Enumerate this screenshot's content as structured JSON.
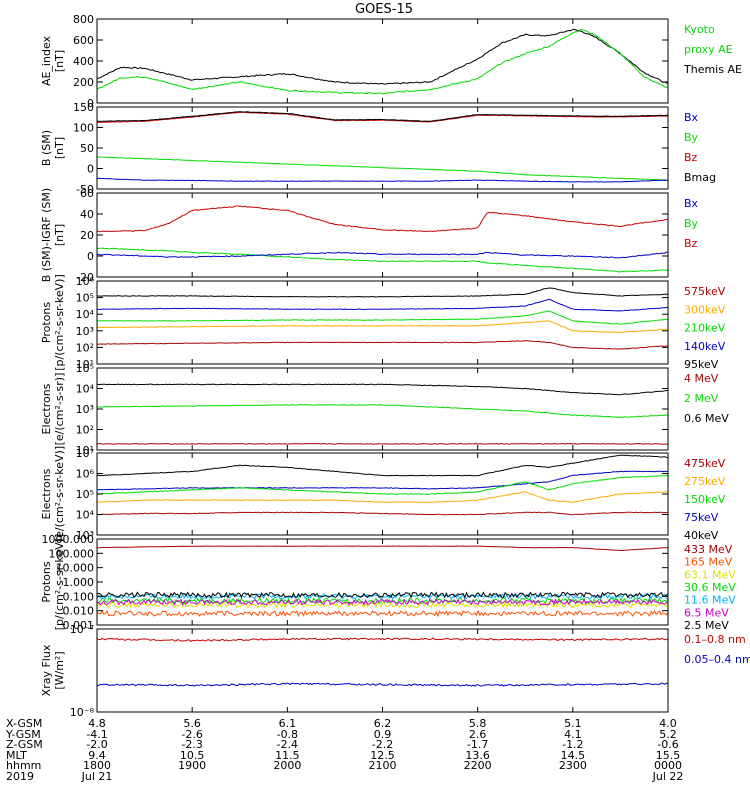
{
  "title": "GOES-15",
  "colors": {
    "black": "#000000",
    "red": "#c80000",
    "green": "#00dc00",
    "blue": "#0000c8",
    "orange": "#ffaa00",
    "darkred": "#aa0000",
    "yellow": "#e0e000",
    "cyan": "#00b4ff",
    "purple": "#a000a0",
    "orangered": "#ff5000",
    "magenta": "#cc00cc"
  },
  "panels": [
    {
      "id": "ae",
      "ylabel": [
        "AE_index",
        "[nT]"
      ],
      "scale": "linear",
      "ylim": [
        0,
        800
      ],
      "yticks": [
        "800",
        "600",
        "400",
        "200",
        "0"
      ],
      "legend": [
        {
          "text": "Kyoto",
          "color": "green"
        },
        {
          "text": "proxy AE",
          "color": "green"
        },
        {
          "text": "Themis AE",
          "color": "black"
        }
      ]
    },
    {
      "id": "bsm",
      "ylabel": [
        "B (SM)",
        "[nT]"
      ],
      "scale": "linear",
      "ylim": [
        -60,
        170
      ],
      "yticks": [
        "150",
        "100",
        "50",
        "0",
        "-50"
      ],
      "legend": [
        {
          "text": "Bx",
          "color": "blue"
        },
        {
          "text": "By",
          "color": "green"
        },
        {
          "text": "Bz",
          "color": "red"
        },
        {
          "text": "Bmag",
          "color": "black"
        }
      ]
    },
    {
      "id": "bigrf",
      "ylabel": [
        "B (SM)-IGRF (SM)",
        "[nT]"
      ],
      "scale": "linear",
      "ylim": [
        -28,
        68
      ],
      "yticks": [
        "60",
        "40",
        "20",
        "0",
        "-20"
      ],
      "legend": [
        {
          "text": "Bx",
          "color": "blue"
        },
        {
          "text": "By",
          "color": "green"
        },
        {
          "text": "Bz",
          "color": "red"
        }
      ]
    },
    {
      "id": "protons1",
      "ylabel": [
        "Protons",
        "[p/(cm²-s-sr-keV)]"
      ],
      "scale": "log",
      "ylim": [
        1,
        6
      ],
      "yticks": [
        "10⁶",
        "10⁵",
        "10⁴",
        "10³",
        "10²",
        "10¹"
      ],
      "legend": [
        {
          "text": "575keV",
          "color": "darkred"
        },
        {
          "text": "300keV",
          "color": "orange"
        },
        {
          "text": "210keV",
          "color": "green"
        },
        {
          "text": "140keV",
          "color": "blue"
        },
        {
          "text": "95keV",
          "color": "black"
        }
      ]
    },
    {
      "id": "electrons1",
      "ylabel": [
        "Electrons",
        "[e/(cm²-s-sr)]"
      ],
      "scale": "log",
      "ylim": [
        1,
        5
      ],
      "yticks": [
        "10⁵",
        "10⁴",
        "10³",
        "10²",
        "10¹"
      ],
      "legend": [
        {
          "text": "4 MeV",
          "color": "darkred"
        },
        {
          "text": "2 MeV",
          "color": "green"
        },
        {
          "text": "0.6 MeV",
          "color": "black"
        }
      ]
    },
    {
      "id": "electrons2",
      "ylabel": [
        "Electrons",
        "[e/(cm²-s-sr-keV)]"
      ],
      "scale": "log",
      "ylim": [
        3,
        7
      ],
      "yticks": [
        "10⁷",
        "10⁶",
        "10⁵",
        "10⁴",
        "10³"
      ],
      "legend": [
        {
          "text": "475keV",
          "color": "darkred"
        },
        {
          "text": "275keV",
          "color": "orange"
        },
        {
          "text": "150keV",
          "color": "green"
        },
        {
          "text": "75keV",
          "color": "blue"
        },
        {
          "text": "40keV",
          "color": "black"
        }
      ]
    },
    {
      "id": "protons2",
      "ylabel": [
        "Protons",
        "[p/(cm²-s-sr-keV)]"
      ],
      "scale": "log",
      "ylim": [
        -3,
        3
      ],
      "yticks": [
        "1000.000",
        "100.000",
        "10.000",
        "1.000",
        "0.100",
        "0.010",
        "0.001"
      ],
      "legend": [
        {
          "text": "433 MeV",
          "color": "darkred"
        },
        {
          "text": "165 MeV",
          "color": "orangered"
        },
        {
          "text": "63.1 MeV",
          "color": "yellow"
        },
        {
          "text": "30.6 MeV",
          "color": "green"
        },
        {
          "text": "11.6 MeV",
          "color": "cyan"
        },
        {
          "text": "6.5 MeV",
          "color": "magenta"
        },
        {
          "text": "2.5 MeV",
          "color": "black"
        }
      ]
    },
    {
      "id": "xray",
      "ylabel": [
        "Xray Flux",
        "[W/m²]"
      ],
      "scale": "log",
      "ylim": [
        -8,
        -7
      ],
      "yticks": [
        "10⁻⁷",
        "10⁻⁸"
      ],
      "legend": [
        {
          "text": "0.1–0.8 nm",
          "color": "red"
        },
        {
          "text": "0.05–0.4 nm",
          "color": "blue"
        }
      ]
    }
  ],
  "chart_data": [
    {
      "type": "line",
      "title": "AE index",
      "ylim": [
        0,
        800
      ],
      "x_hours": [
        0,
        0.25,
        0.5,
        1.0,
        1.5,
        2.0,
        2.5,
        3.0,
        3.5,
        4.0,
        4.25,
        4.5,
        4.75,
        5.0,
        5.1,
        5.25,
        5.5,
        5.75,
        6.0
      ],
      "series": [
        {
          "name": "Themis AE",
          "color": "black",
          "values": [
            230,
            340,
            330,
            220,
            250,
            280,
            200,
            180,
            200,
            420,
            570,
            650,
            640,
            700,
            680,
            620,
            470,
            290,
            180
          ]
        },
        {
          "name": "Kyoto proxy AE",
          "color": "green",
          "values": [
            130,
            240,
            250,
            130,
            200,
            120,
            100,
            90,
            130,
            230,
            380,
            470,
            540,
            670,
            700,
            640,
            470,
            250,
            140
          ]
        }
      ]
    },
    {
      "type": "line",
      "title": "B (SM)",
      "ylim": [
        -60,
        170
      ],
      "x_hours": [
        0,
        0.5,
        1.0,
        1.5,
        2.0,
        2.5,
        3.0,
        3.5,
        4.0,
        4.5,
        5.0,
        5.5,
        6.0
      ],
      "series": [
        {
          "name": "Bz",
          "color": "red",
          "values": [
            127,
            130,
            142,
            155,
            150,
            132,
            133,
            128,
            147,
            145,
            143,
            142,
            145
          ]
        },
        {
          "name": "Bmag",
          "color": "black",
          "values": [
            130,
            132,
            144,
            157,
            152,
            134,
            135,
            130,
            149,
            147,
            145,
            144,
            147
          ]
        },
        {
          "name": "By",
          "color": "green",
          "values": [
            30,
            25,
            20,
            15,
            10,
            5,
            0,
            -5,
            -10,
            -20,
            -25,
            -30,
            -35
          ]
        },
        {
          "name": "Bx",
          "color": "blue",
          "values": [
            -30,
            -35,
            -36,
            -38,
            -38,
            -38,
            -38,
            -38,
            -35,
            -38,
            -40,
            -40,
            -35
          ]
        }
      ]
    },
    {
      "type": "line",
      "title": "B (SM)-IGRF (SM)",
      "ylim": [
        -28,
        68
      ],
      "x_hours": [
        0,
        0.5,
        0.75,
        1.0,
        1.5,
        2.0,
        2.5,
        3.0,
        3.5,
        4.0,
        4.1,
        4.5,
        5.0,
        5.5,
        6.0
      ],
      "series": [
        {
          "name": "Bz",
          "color": "red",
          "values": [
            24,
            25,
            33,
            48,
            53,
            48,
            32,
            26,
            24,
            28,
            46,
            42,
            35,
            30,
            38
          ]
        },
        {
          "name": "By",
          "color": "green",
          "values": [
            5,
            3,
            2,
            0,
            -2,
            -5,
            -8,
            -10,
            -10,
            -10,
            -12,
            -15,
            -18,
            -22,
            -20
          ]
        },
        {
          "name": "Bx",
          "color": "blue",
          "values": [
            -2,
            -4,
            -5,
            -5,
            -4,
            -2,
            0,
            -2,
            -2,
            -2,
            0,
            -3,
            -4,
            -6,
            0
          ]
        }
      ]
    },
    {
      "type": "line",
      "title": "Protons (keV)",
      "ylim": [
        1,
        6
      ],
      "scale": "log10",
      "x_hours": [
        0,
        1.0,
        2.0,
        3.0,
        4.0,
        4.5,
        4.75,
        5.0,
        5.5,
        6.0
      ],
      "series": [
        {
          "name": "95keV",
          "color": "black",
          "values": [
            5.1,
            5.1,
            5.05,
            5.05,
            5.1,
            5.2,
            5.6,
            5.3,
            5.1,
            5.2
          ]
        },
        {
          "name": "140keV",
          "color": "blue",
          "values": [
            4.3,
            4.35,
            4.3,
            4.3,
            4.35,
            4.5,
            4.9,
            4.3,
            4.2,
            4.4
          ]
        },
        {
          "name": "210keV",
          "color": "green",
          "values": [
            3.6,
            3.6,
            3.65,
            3.65,
            3.7,
            3.9,
            4.2,
            3.6,
            3.4,
            3.7
          ]
        },
        {
          "name": "300keV",
          "color": "orange",
          "values": [
            3.2,
            3.25,
            3.3,
            3.3,
            3.3,
            3.5,
            3.6,
            3.0,
            2.9,
            3.1
          ]
        },
        {
          "name": "575keV",
          "color": "darkred",
          "values": [
            2.2,
            2.25,
            2.3,
            2.3,
            2.3,
            2.4,
            2.3,
            2.0,
            1.9,
            2.1
          ]
        }
      ]
    },
    {
      "type": "line",
      "title": "Electrons (MeV)",
      "ylim": [
        1,
        5
      ],
      "scale": "log10",
      "x_hours": [
        0,
        1.0,
        2.0,
        3.0,
        4.0,
        4.5,
        5.0,
        5.5,
        6.0
      ],
      "series": [
        {
          "name": "0.6 MeV",
          "color": "black",
          "values": [
            4.2,
            4.2,
            4.2,
            4.2,
            4.1,
            4.0,
            3.8,
            3.7,
            3.9
          ]
        },
        {
          "name": "2 MeV",
          "color": "green",
          "values": [
            3.1,
            3.15,
            3.2,
            3.2,
            3.0,
            2.9,
            2.7,
            2.6,
            2.7
          ]
        },
        {
          "name": "4 MeV",
          "color": "darkred",
          "values": [
            1.3,
            1.3,
            1.3,
            1.3,
            1.3,
            1.3,
            1.3,
            1.3,
            1.3
          ]
        }
      ]
    },
    {
      "type": "line",
      "title": "Electrons (keV)",
      "ylim": [
        3,
        7
      ],
      "scale": "log10",
      "x_hours": [
        0,
        0.5,
        1.0,
        1.5,
        2.0,
        2.5,
        3.0,
        3.5,
        4.0,
        4.5,
        4.75,
        5.0,
        5.5,
        6.0
      ],
      "series": [
        {
          "name": "40keV",
          "color": "black",
          "values": [
            5.9,
            6.0,
            6.1,
            6.4,
            6.3,
            6.1,
            5.9,
            5.9,
            5.9,
            6.4,
            6.3,
            6.5,
            6.9,
            6.8
          ]
        },
        {
          "name": "75keV",
          "color": "blue",
          "values": [
            5.2,
            5.25,
            5.3,
            5.3,
            5.3,
            5.3,
            5.3,
            5.25,
            5.3,
            5.5,
            5.6,
            5.9,
            6.1,
            6.1
          ]
        },
        {
          "name": "150keV",
          "color": "green",
          "values": [
            5.0,
            5.1,
            5.2,
            5.3,
            5.2,
            5.1,
            5.0,
            5.0,
            5.1,
            5.6,
            5.2,
            5.5,
            5.8,
            5.9
          ]
        },
        {
          "name": "275keV",
          "color": "orange",
          "values": [
            4.6,
            4.7,
            4.7,
            4.7,
            4.7,
            4.7,
            4.6,
            4.6,
            4.7,
            5.1,
            4.7,
            4.6,
            5.0,
            5.1
          ]
        },
        {
          "name": "475keV",
          "color": "darkred",
          "values": [
            4.0,
            4.05,
            4.05,
            4.1,
            4.1,
            4.1,
            4.05,
            4.0,
            4.0,
            4.1,
            4.1,
            4.0,
            4.1,
            4.1
          ]
        }
      ]
    },
    {
      "type": "line",
      "title": "Protons (MeV)",
      "ylim": [
        -3,
        3
      ],
      "scale": "log10",
      "x_hours": [
        0,
        1.0,
        2.0,
        3.0,
        4.0,
        4.5,
        5.0,
        5.5,
        6.0
      ],
      "series": [
        {
          "name": "433 MeV",
          "color": "darkred",
          "values": [
            2.4,
            2.5,
            2.5,
            2.5,
            2.5,
            2.4,
            2.4,
            2.2,
            2.4
          ]
        },
        {
          "name": "165 MeV",
          "color": "orangered",
          "values": [
            -2.2,
            -2.2,
            -2.2,
            -2.2,
            -2.2,
            -2.2,
            -2.2,
            -2.2,
            -2.2
          ]
        },
        {
          "name": "63.1 MeV",
          "color": "yellow",
          "values": [
            -1.6,
            -1.6,
            -1.6,
            -1.6,
            -1.6,
            -1.6,
            -1.6,
            -1.6,
            -1.6
          ]
        },
        {
          "name": "30.6 MeV",
          "color": "green",
          "values": [
            -1.3,
            -1.3,
            -1.3,
            -1.3,
            -1.3,
            -1.3,
            -1.3,
            -1.3,
            -1.3
          ]
        },
        {
          "name": "11.6 MeV",
          "color": "cyan",
          "values": [
            -1.0,
            -1.0,
            -1.0,
            -1.0,
            -1.0,
            -1.0,
            -1.0,
            -1.0,
            -1.0
          ]
        },
        {
          "name": "6.5 MeV",
          "color": "magenta",
          "values": [
            -1.4,
            -1.4,
            -1.4,
            -1.4,
            -1.4,
            -1.4,
            -1.4,
            -1.4,
            -1.4
          ]
        },
        {
          "name": "2.5 MeV",
          "color": "black",
          "values": [
            -0.9,
            -0.9,
            -0.9,
            -0.9,
            -0.9,
            -0.9,
            -0.9,
            -0.9,
            -0.9
          ]
        }
      ]
    },
    {
      "type": "line",
      "title": "Xray Flux",
      "ylim": [
        -8,
        -7
      ],
      "scale": "log10",
      "x_hours": [
        0,
        1.0,
        2.0,
        3.0,
        4.0,
        5.0,
        6.0
      ],
      "series": [
        {
          "name": "0.1–0.8 nm",
          "color": "red",
          "values": [
            -7.12,
            -7.14,
            -7.12,
            -7.12,
            -7.12,
            -7.13,
            -7.12
          ]
        },
        {
          "name": "0.05–0.4 nm",
          "color": "blue",
          "values": [
            -7.67,
            -7.68,
            -7.66,
            -7.67,
            -7.68,
            -7.67,
            -7.66
          ]
        }
      ]
    }
  ],
  "x_axis": {
    "labels": [
      "X-GSM",
      "Y-GSM",
      "Z-GSM",
      "MLT",
      "hhmm",
      "2019"
    ],
    "columns": [
      [
        "4.8",
        "-4.1",
        "-2.0",
        "9.4",
        "1800",
        "Jul 21"
      ],
      [
        "5.6",
        "-2.6",
        "-2.3",
        "10.5",
        "1900",
        ""
      ],
      [
        "6.1",
        "-0.8",
        "-2.4",
        "11.5",
        "2000",
        ""
      ],
      [
        "6.2",
        "0.9",
        "-2.2",
        "12.5",
        "2100",
        ""
      ],
      [
        "5.8",
        "2.6",
        "-1.7",
        "13.6",
        "2200",
        ""
      ],
      [
        "5.1",
        "4.1",
        "-1.2",
        "14.5",
        "2300",
        ""
      ],
      [
        "4.0",
        "5.2",
        "-0.6",
        "15.5",
        "0000",
        "Jul 22"
      ]
    ]
  }
}
